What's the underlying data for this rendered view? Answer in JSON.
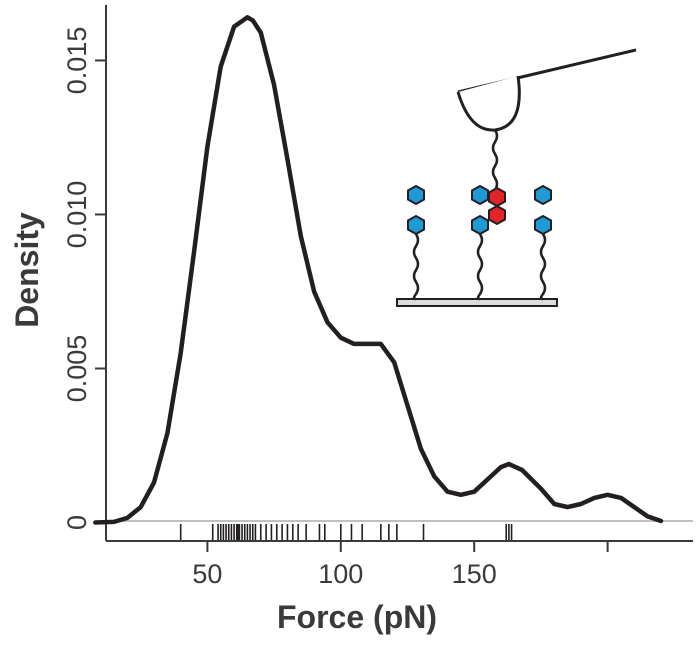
{
  "chart_data": {
    "type": "line",
    "title": "",
    "xlabel": "Force (pN)",
    "ylabel": "Density",
    "xlim": [
      12,
      232
    ],
    "ylim": [
      -0.0006,
      0.0168
    ],
    "x_ticks": [
      50,
      100,
      150
    ],
    "y_ticks": [
      0,
      0.005,
      0.01,
      0.015
    ],
    "x_tick_labels": [
      "50",
      "100",
      "150"
    ],
    "y_tick_labels": [
      "0",
      "0.005",
      "0.010",
      "0.015"
    ],
    "extra_x_tick": 200,
    "series": [
      {
        "x": [
          8,
          15,
          20,
          25,
          30,
          35,
          40,
          45,
          50,
          55,
          60,
          65,
          67,
          70,
          75,
          80,
          85,
          90,
          95,
          100,
          105,
          110,
          115,
          120,
          125,
          130,
          135,
          140,
          145,
          150,
          155,
          160,
          163,
          168,
          175,
          180,
          185,
          190,
          195,
          200,
          205,
          210,
          215,
          220
        ],
        "y": [
          0,
          2e-05,
          0.00015,
          0.0005,
          0.0013,
          0.0029,
          0.0055,
          0.0088,
          0.0122,
          0.0148,
          0.0161,
          0.0164,
          0.0163,
          0.0159,
          0.0142,
          0.0118,
          0.0093,
          0.0075,
          0.0065,
          0.006,
          0.0058,
          0.0058,
          0.0058,
          0.0052,
          0.0038,
          0.0024,
          0.0015,
          0.001,
          0.0009,
          0.001,
          0.0014,
          0.0018,
          0.0019,
          0.0017,
          0.0011,
          0.0006,
          0.0005,
          0.0006,
          0.0008,
          0.0009,
          0.0008,
          0.0005,
          0.0002,
          5e-05
        ]
      }
    ],
    "rug": [
      40,
      52,
      54,
      55,
      56,
      57,
      58,
      59,
      60,
      61,
      61.5,
      62,
      63,
      64,
      65,
      66,
      67,
      68,
      70,
      72,
      74,
      76,
      78,
      80,
      82,
      84,
      87,
      92,
      94,
      100,
      104,
      108,
      115,
      118,
      121,
      131,
      162,
      163,
      164
    ],
    "grid": false
  }
}
